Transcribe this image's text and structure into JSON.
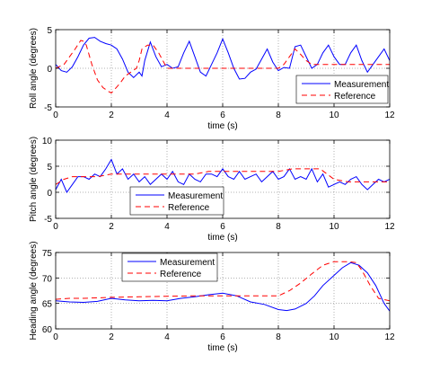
{
  "figure": {
    "background": "#ffffff",
    "measurement_color": "#0000ff",
    "reference_color": "#ff0000"
  },
  "chart_data": [
    {
      "type": "line",
      "xlabel": "time (s)",
      "ylabel": "Roll angle (degrees)",
      "xlim": [
        0,
        12
      ],
      "ylim": [
        -5,
        5
      ],
      "xticks": [
        0,
        2,
        4,
        6,
        8,
        10,
        12
      ],
      "yticks": [
        -5,
        0,
        5
      ],
      "grid": true,
      "legend_position": "bottom-right",
      "series": [
        {
          "name": "Measurement",
          "style": "solid",
          "color": "#0000ff",
          "x": [
            0,
            0.2,
            0.4,
            0.6,
            0.8,
            1.0,
            1.2,
            1.4,
            1.6,
            1.8,
            2.0,
            2.2,
            2.4,
            2.6,
            2.8,
            3.0,
            3.1,
            3.2,
            3.4,
            3.6,
            3.8,
            4.0,
            4.2,
            4.4,
            4.6,
            4.8,
            5.0,
            5.2,
            5.4,
            5.6,
            5.8,
            6.0,
            6.2,
            6.4,
            6.6,
            6.8,
            7.0,
            7.2,
            7.4,
            7.6,
            7.8,
            8.0,
            8.2,
            8.4,
            8.6,
            8.8,
            9.0,
            9.2,
            9.4,
            9.6,
            9.8,
            10.0,
            10.2,
            10.4,
            10.6,
            10.8,
            11.0,
            11.2,
            11.4,
            11.6,
            11.8,
            12.0
          ],
          "y": [
            0.5,
            -0.3,
            -0.5,
            0.2,
            1.5,
            3.0,
            3.9,
            4.0,
            3.5,
            3.2,
            3.0,
            2.5,
            1.2,
            -0.5,
            -1.2,
            -0.5,
            -1.0,
            1.0,
            3.4,
            1.5,
            0.2,
            0.5,
            0.0,
            0.2,
            2.0,
            3.5,
            1.5,
            -0.5,
            -1.0,
            0.5,
            2.0,
            3.8,
            2.0,
            0.0,
            -1.4,
            -1.3,
            -0.5,
            -0.1,
            1.2,
            2.5,
            0.8,
            -0.3,
            0.1,
            0.0,
            2.8,
            3.0,
            1.5,
            0.0,
            0.5,
            2.0,
            3.0,
            1.5,
            0.5,
            0.5,
            2.0,
            3.0,
            1.0,
            -0.5,
            0.5,
            1.5,
            2.5,
            1.0
          ]
        },
        {
          "name": "Reference",
          "style": "dashed",
          "color": "#ff0000",
          "x": [
            0,
            0.3,
            0.5,
            0.7,
            0.9,
            1.0,
            1.1,
            1.3,
            1.5,
            1.7,
            1.9,
            2.0,
            2.1,
            2.3,
            2.5,
            2.7,
            2.9,
            3.0,
            3.1,
            3.3,
            3.5,
            3.7,
            4.0,
            4.3,
            4.5,
            4.7,
            5.0,
            5.3,
            5.5,
            6.0,
            6.5,
            7.0,
            7.5,
            8.0,
            8.2,
            8.4,
            8.6,
            8.8,
            9.0,
            9.2,
            9.5,
            10.0,
            10.5,
            10.8,
            11.0,
            11.5,
            12.0
          ],
          "y": [
            0.0,
            0.5,
            1.5,
            2.5,
            3.6,
            3.5,
            3.0,
            0.5,
            -1.5,
            -2.5,
            -3.0,
            -3.2,
            -2.8,
            -2.0,
            -1.0,
            -0.5,
            0.0,
            1.0,
            2.5,
            3.0,
            3.0,
            2.0,
            0.0,
            0.0,
            0.0,
            0.0,
            0.0,
            0.0,
            0.0,
            0.0,
            0.0,
            0.0,
            0.0,
            0.0,
            0.5,
            1.5,
            2.5,
            1.8,
            1.0,
            0.5,
            0.5,
            0.5,
            0.5,
            0.5,
            0.5,
            0.5,
            0.5
          ]
        }
      ]
    },
    {
      "type": "line",
      "xlabel": "time (s)",
      "ylabel": "Pitch angle (degrees)",
      "xlim": [
        0,
        12
      ],
      "ylim": [
        -5,
        10
      ],
      "xticks": [
        0,
        2,
        4,
        6,
        8,
        10,
        12
      ],
      "yticks": [
        -5,
        0,
        5,
        10
      ],
      "grid": true,
      "legend_position": "bottom-left",
      "series": [
        {
          "name": "Measurement",
          "style": "solid",
          "color": "#0000ff",
          "x": [
            0,
            0.2,
            0.4,
            0.6,
            0.8,
            1.0,
            1.2,
            1.4,
            1.6,
            1.8,
            2.0,
            2.2,
            2.4,
            2.6,
            2.8,
            3.0,
            3.2,
            3.4,
            3.6,
            3.8,
            4.0,
            4.2,
            4.4,
            4.6,
            4.8,
            5.0,
            5.2,
            5.4,
            5.6,
            5.8,
            6.0,
            6.2,
            6.4,
            6.6,
            6.8,
            7.0,
            7.2,
            7.4,
            7.6,
            7.8,
            8.0,
            8.2,
            8.4,
            8.6,
            8.8,
            9.0,
            9.2,
            9.4,
            9.6,
            9.8,
            10.0,
            10.2,
            10.4,
            10.6,
            10.8,
            11.0,
            11.2,
            11.4,
            11.6,
            11.8,
            12.0
          ],
          "y": [
            0.5,
            2.5,
            0.0,
            1.5,
            3.0,
            3.0,
            2.5,
            3.5,
            3.0,
            4.5,
            6.3,
            3.5,
            4.5,
            2.5,
            3.5,
            2.0,
            3.0,
            1.5,
            2.5,
            3.5,
            2.5,
            4.0,
            2.0,
            1.5,
            3.5,
            2.5,
            2.0,
            3.5,
            3.5,
            3.0,
            4.5,
            3.0,
            2.5,
            4.0,
            2.5,
            3.0,
            3.5,
            2.0,
            3.0,
            4.0,
            2.5,
            3.0,
            4.5,
            2.5,
            3.0,
            2.5,
            4.5,
            2.0,
            3.5,
            1.0,
            1.5,
            2.0,
            1.5,
            2.5,
            3.0,
            1.5,
            0.5,
            1.5,
            2.5,
            2.0,
            2.5
          ]
        },
        {
          "name": "Reference",
          "style": "dashed",
          "color": "#ff0000",
          "x": [
            0,
            0.3,
            0.6,
            1.0,
            1.5,
            2.0,
            2.5,
            3.0,
            3.5,
            4.0,
            4.5,
            5.0,
            5.5,
            6.0,
            6.5,
            7.0,
            7.5,
            8.0,
            8.5,
            9.0,
            9.5,
            10.0,
            10.5,
            11.0,
            11.5,
            12.0
          ],
          "y": [
            1.5,
            2.5,
            3.0,
            3.0,
            3.0,
            3.5,
            3.5,
            3.5,
            3.5,
            3.5,
            3.5,
            3.5,
            4.0,
            4.0,
            4.0,
            4.0,
            4.0,
            4.0,
            4.5,
            4.5,
            4.5,
            2.5,
            2.0,
            2.0,
            2.0,
            2.0
          ]
        }
      ]
    },
    {
      "type": "line",
      "xlabel": "time (s)",
      "ylabel": "Heading angle (degrees)",
      "xlim": [
        0,
        12
      ],
      "ylim": [
        60,
        75
      ],
      "xticks": [
        0,
        2,
        4,
        6,
        8,
        10,
        12
      ],
      "yticks": [
        60,
        65,
        70,
        75
      ],
      "grid": true,
      "legend_position": "top-left",
      "series": [
        {
          "name": "Measurement",
          "style": "solid",
          "color": "#0000ff",
          "x": [
            0,
            0.5,
            1.0,
            1.5,
            2.0,
            2.5,
            3.0,
            3.5,
            4.0,
            4.5,
            5.0,
            5.5,
            6.0,
            6.5,
            7.0,
            7.5,
            8.0,
            8.3,
            8.6,
            9.0,
            9.3,
            9.6,
            10.0,
            10.3,
            10.6,
            10.9,
            11.2,
            11.5,
            11.8,
            12.0
          ],
          "y": [
            65.5,
            65.3,
            65.2,
            65.4,
            66.0,
            65.7,
            65.5,
            65.6,
            65.5,
            66.0,
            66.3,
            66.7,
            67.0,
            66.5,
            65.3,
            64.8,
            63.8,
            63.6,
            63.9,
            65.0,
            66.5,
            68.5,
            70.5,
            72.0,
            73.0,
            72.5,
            71.0,
            68.5,
            65.0,
            63.5
          ]
        },
        {
          "name": "Reference",
          "style": "dashed",
          "color": "#ff0000",
          "x": [
            0,
            0.5,
            1.0,
            2.0,
            3.0,
            4.0,
            5.0,
            6.0,
            7.0,
            8.0,
            8.4,
            8.8,
            9.2,
            9.6,
            10.0,
            10.5,
            10.8,
            11.0,
            11.3,
            11.6,
            12.0
          ],
          "y": [
            65.8,
            66.0,
            66.0,
            66.2,
            66.3,
            66.4,
            66.5,
            66.5,
            66.5,
            66.5,
            67.5,
            69.0,
            70.8,
            72.5,
            73.2,
            73.2,
            73.0,
            71.5,
            68.5,
            66.0,
            65.5
          ]
        }
      ]
    }
  ]
}
